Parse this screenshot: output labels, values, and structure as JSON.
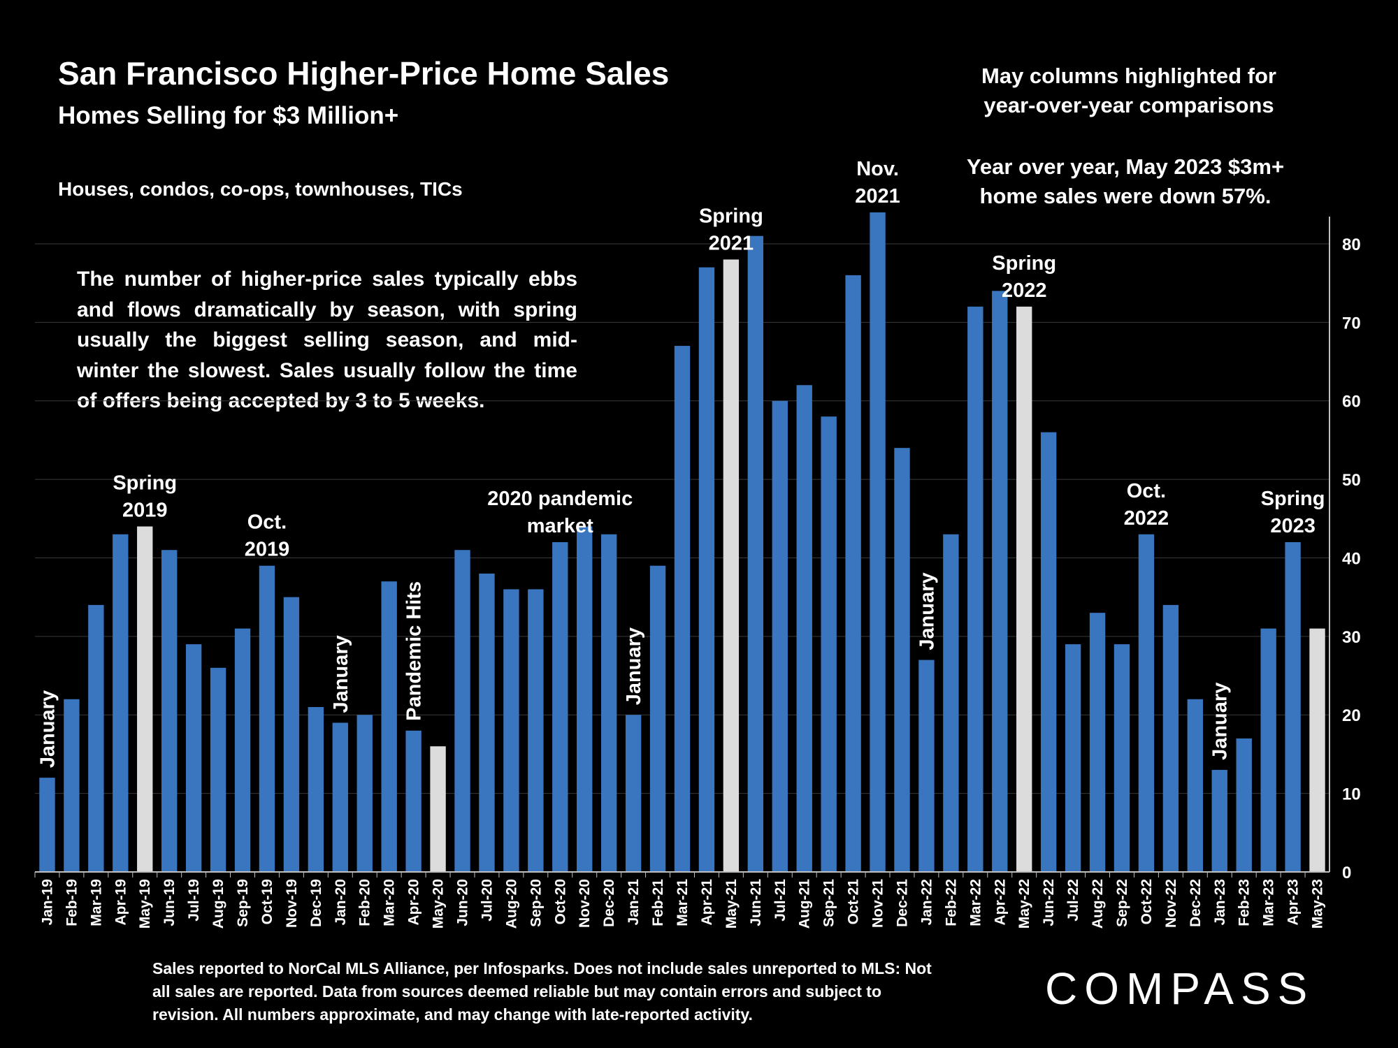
{
  "header": {
    "title": "San Francisco Higher-Price Home Sales",
    "subtitle": "Homes Selling for $3 Million+",
    "property_types": "Houses, condos, co-ops, townhouses, TICs"
  },
  "notes": {
    "highlight_note": "May columns highlighted for year-over-year comparisons",
    "yoy_note": "Year over year, May 2023 $3m+ home sales were down 57%.",
    "explanation": "The number of higher-price sales typically ebbs and flows dramatically by season, with spring usually the biggest selling season, and mid-winter the slowest. Sales usually follow the time of offers being accepted by 3 to 5 weeks."
  },
  "footnote": "Sales reported to NorCal MLS Alliance, per Infosparks. Does not include sales unreported to MLS: Not all sales are reported. Data from sources deemed reliable but may contain errors and subject to revision.  All numbers approximate, and may change with late-reported activity.",
  "brand": {
    "logo_text": "COMPASS"
  },
  "colors": {
    "bar": "#3a76bf",
    "highlight_bar": "#dcdcdc",
    "background": "#000000",
    "text": "#ffffff"
  },
  "chart_data": {
    "type": "bar",
    "title": "San Francisco Higher-Price Home Sales",
    "subtitle": "Homes Selling for $3 Million+",
    "categories": [
      "Jan-19",
      "Feb-19",
      "Mar-19",
      "Apr-19",
      "May-19",
      "Jun-19",
      "Jul-19",
      "Aug-19",
      "Sep-19",
      "Oct-19",
      "Nov-19",
      "Dec-19",
      "Jan-20",
      "Feb-20",
      "Mar-20",
      "Apr-20",
      "May-20",
      "Jun-20",
      "Jul-20",
      "Aug-20",
      "Sep-20",
      "Oct-20",
      "Nov-20",
      "Dec-20",
      "Jan-21",
      "Feb-21",
      "Mar-21",
      "Apr-21",
      "May-21",
      "Jun-21",
      "Jul-21",
      "Aug-21",
      "Sep-21",
      "Oct-21",
      "Nov-21",
      "Dec-21",
      "Jan-22",
      "Feb-22",
      "Mar-22",
      "Apr-22",
      "May-22",
      "Jun-22",
      "Jul-22",
      "Aug-22",
      "Sep-22",
      "Oct-22",
      "Nov-22",
      "Dec-22",
      "Jan-23",
      "Feb-23",
      "Mar-23",
      "Apr-23",
      "May-23"
    ],
    "values": [
      12,
      22,
      34,
      43,
      44,
      41,
      29,
      26,
      31,
      39,
      35,
      21,
      19,
      20,
      37,
      18,
      16,
      41,
      38,
      36,
      36,
      42,
      44,
      43,
      20,
      39,
      67,
      77,
      78,
      81,
      60,
      62,
      58,
      76,
      84,
      54,
      27,
      43,
      72,
      74,
      72,
      56,
      29,
      33,
      29,
      43,
      34,
      22,
      13,
      17,
      31,
      42,
      31
    ],
    "highlighted_categories": [
      "May-19",
      "May-20",
      "May-21",
      "May-22",
      "May-23"
    ],
    "yaxis": {
      "position": "right",
      "ylim": [
        0,
        84
      ],
      "ticks": [
        0,
        10,
        20,
        30,
        40,
        50,
        60,
        70,
        80
      ]
    },
    "xlabel": "",
    "ylabel": "",
    "grid": true,
    "annotations": [
      {
        "text": "January",
        "category": "Jan-19",
        "orientation": "vertical"
      },
      {
        "text": "Spring 2019",
        "category": "May-19",
        "orientation": "horizontal"
      },
      {
        "text": "Oct. 2019",
        "category": "Oct-19",
        "orientation": "horizontal"
      },
      {
        "text": "January",
        "category": "Jan-20",
        "orientation": "vertical"
      },
      {
        "text": "Pandemic Hits",
        "category": "Apr-20",
        "orientation": "vertical"
      },
      {
        "text": "2020 pandemic market",
        "category": "Oct-20",
        "orientation": "horizontal"
      },
      {
        "text": "January",
        "category": "Jan-21",
        "orientation": "vertical"
      },
      {
        "text": "Spring 2021",
        "category": "May-21",
        "orientation": "horizontal"
      },
      {
        "text": "Nov. 2021",
        "category": "Nov-21",
        "orientation": "horizontal"
      },
      {
        "text": "January",
        "category": "Jan-22",
        "orientation": "vertical"
      },
      {
        "text": "Spring 2022",
        "category": "May-22",
        "orientation": "horizontal"
      },
      {
        "text": "Oct. 2022",
        "category": "Oct-22",
        "orientation": "horizontal"
      },
      {
        "text": "January",
        "category": "Jan-23",
        "orientation": "vertical"
      },
      {
        "text": "Spring 2023",
        "category": "Apr-23",
        "orientation": "horizontal"
      }
    ]
  }
}
